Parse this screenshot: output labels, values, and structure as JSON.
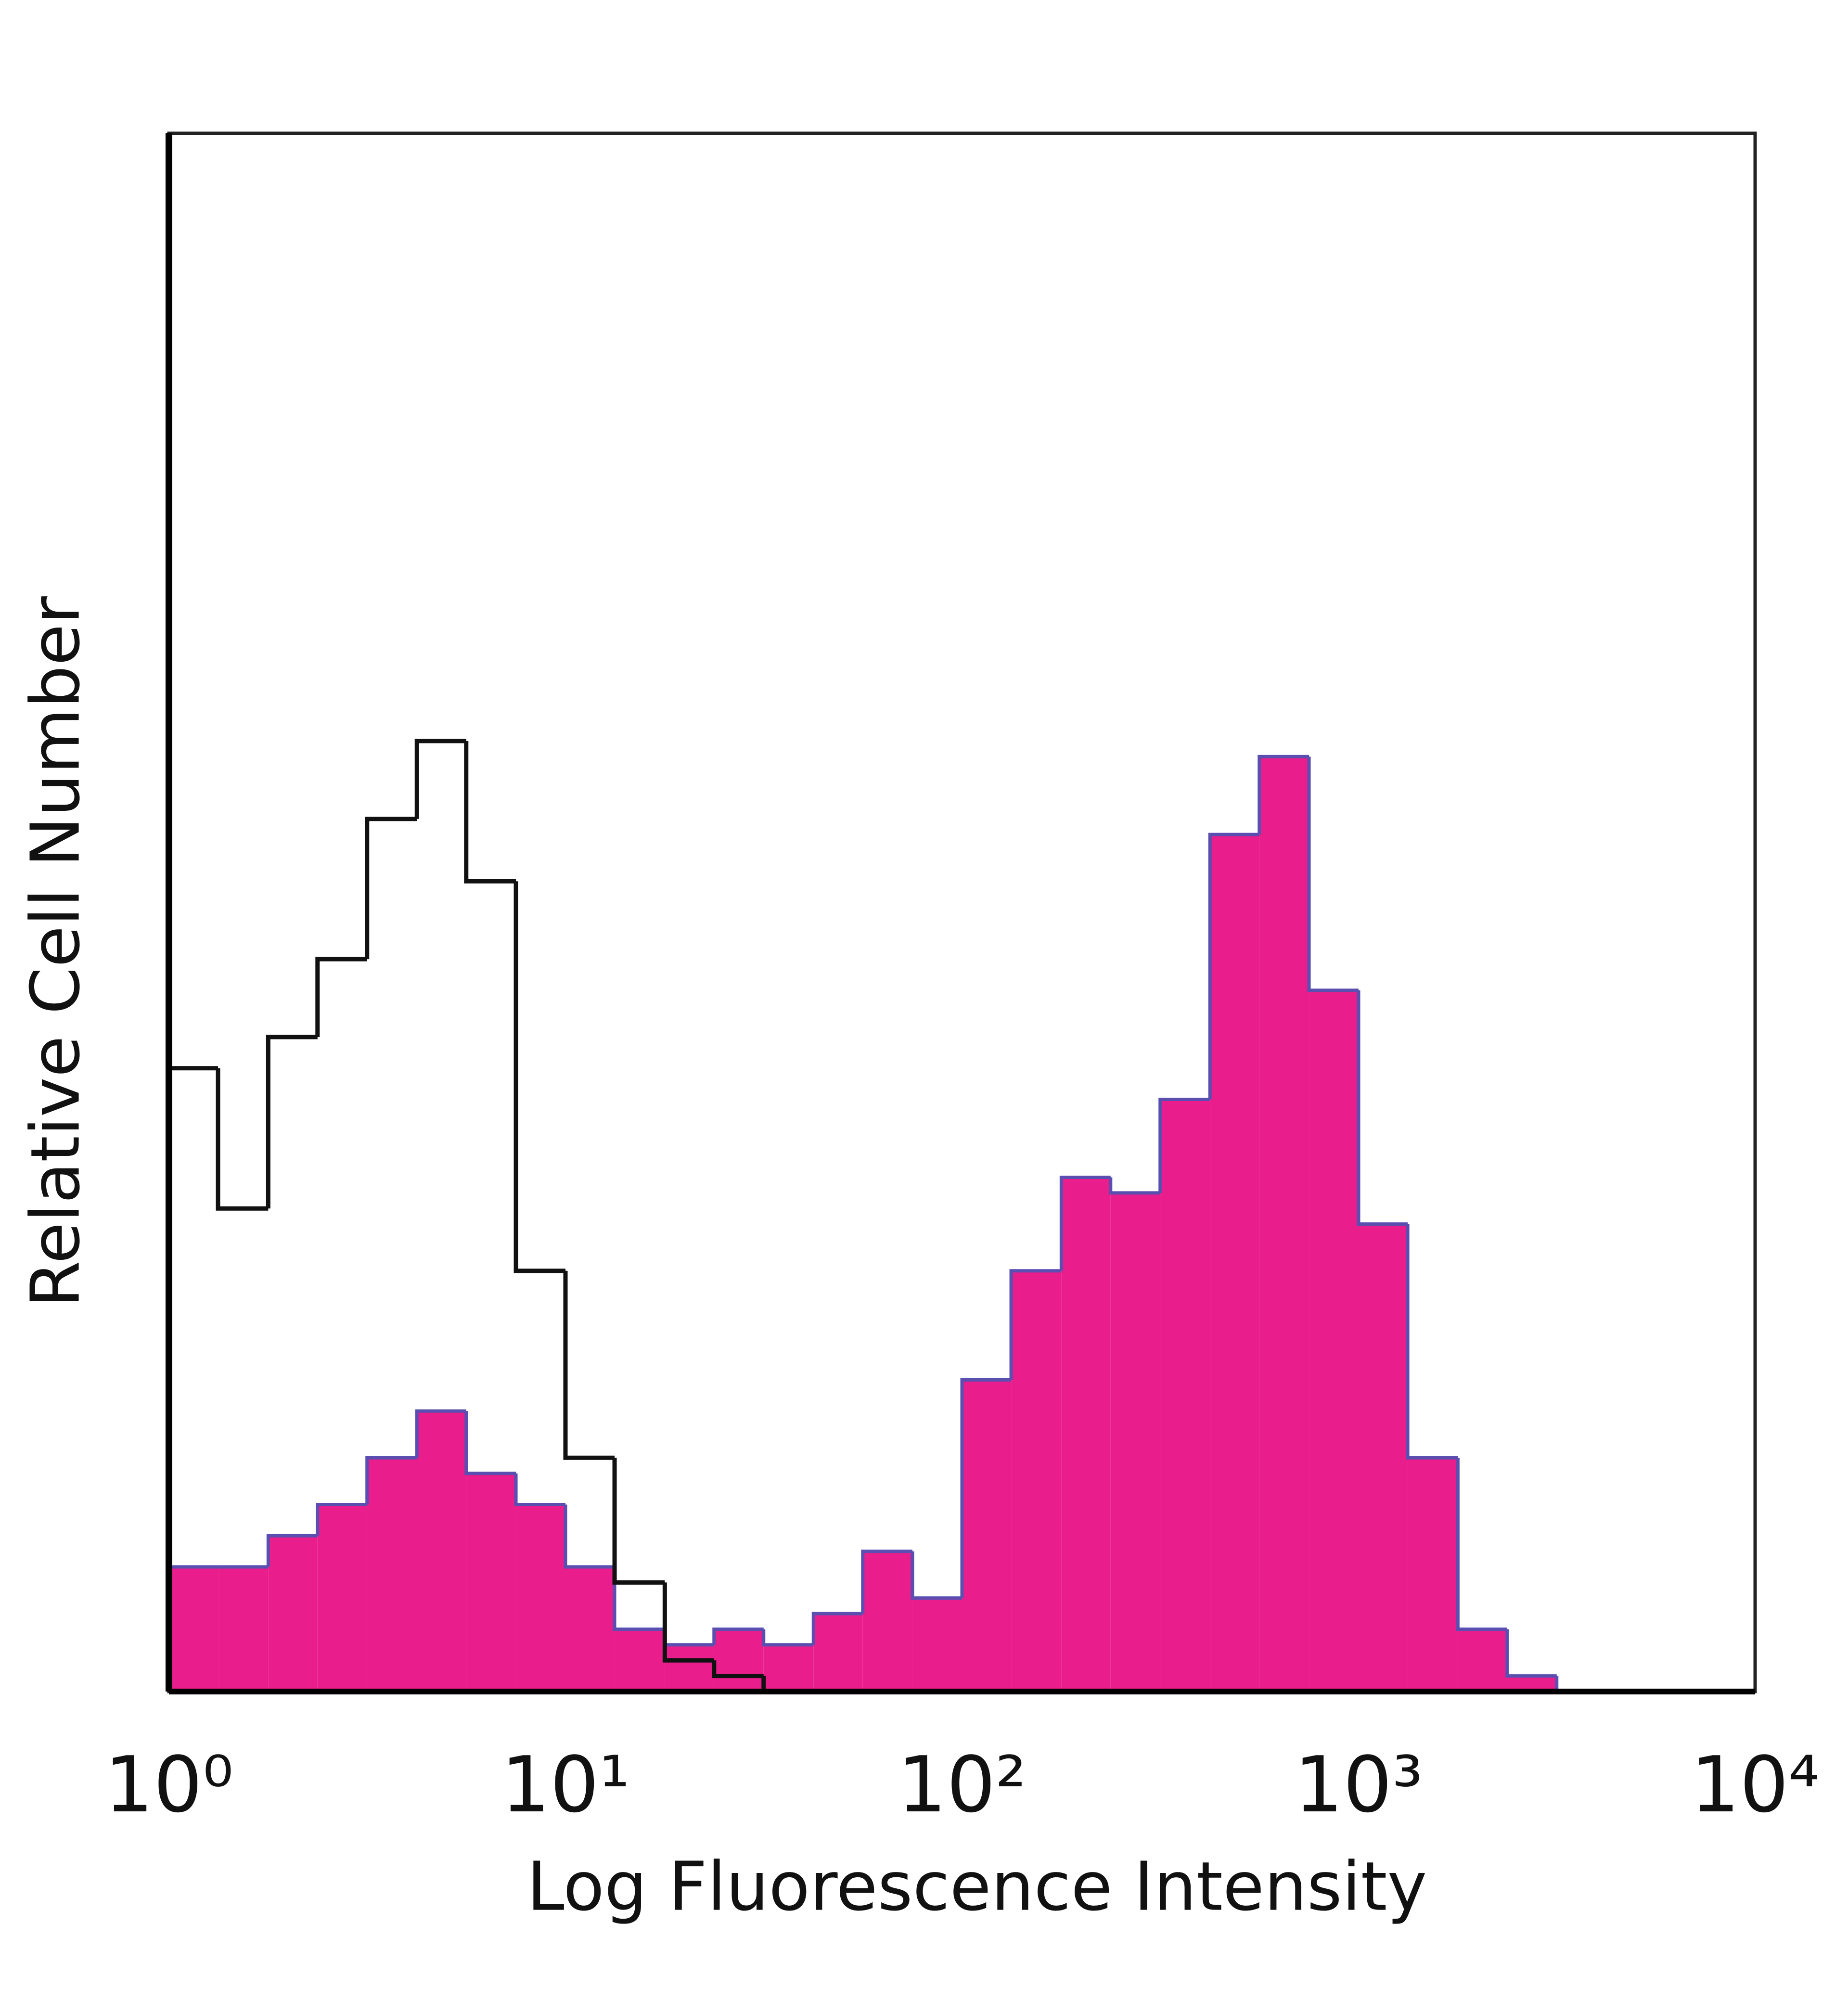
{
  "chart_data": {
    "type": "histogram",
    "xlabel": "Log Fluorescence Intensity",
    "ylabel": "Relative Cell Number",
    "xscale": "log",
    "xlim": [
      1,
      10000
    ],
    "xticks": [
      {
        "value": 1,
        "label": "10⁰"
      },
      {
        "value": 10,
        "label": "10¹"
      },
      {
        "value": 100,
        "label": "10²"
      },
      {
        "value": 1000,
        "label": "10³"
      },
      {
        "value": 10000,
        "label": "10⁴"
      }
    ],
    "ylim": [
      0,
      100
    ],
    "bins": [
      1,
      1.33,
      1.78,
      2.37,
      3.16,
      4.22,
      5.62,
      7.5,
      10,
      13.3,
      17.8,
      23.7,
      31.6,
      42.2,
      56.2,
      75,
      100,
      133,
      178,
      237,
      316,
      422,
      562,
      750,
      1000,
      1330,
      1780,
      2370,
      3160,
      4220,
      5620,
      7500,
      10000
    ],
    "series": [
      {
        "color": "#e91e8c",
        "edge_color": "#5a4fb0",
        "filled": true,
        "values": [
          8,
          8,
          10,
          12,
          15,
          18,
          14,
          12,
          8,
          4,
          3,
          4,
          3,
          5,
          9,
          6,
          20,
          27,
          33,
          32,
          38,
          55,
          60,
          45,
          30,
          15,
          4,
          1,
          0,
          0,
          0,
          0
        ]
      },
      {
        "color": "#111111",
        "filled": false,
        "values": [
          40,
          31,
          42,
          47,
          56,
          61,
          52,
          27,
          15,
          7,
          2,
          1,
          0,
          0,
          0,
          0,
          0,
          0,
          0,
          0,
          0,
          0,
          0,
          0,
          0,
          0,
          0,
          0,
          0,
          0,
          0,
          0
        ]
      }
    ]
  }
}
